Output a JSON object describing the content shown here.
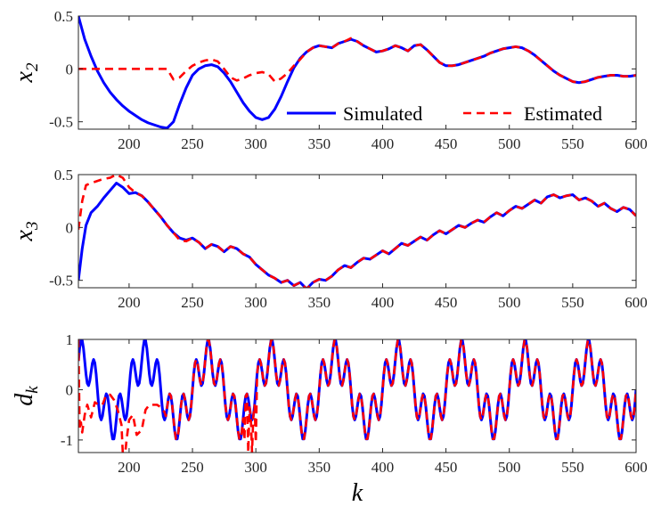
{
  "colors": {
    "simulated": "#0000ff",
    "estimated": "#ff0000",
    "axis": "#262626"
  },
  "legend": {
    "location": "bottom-right of top panel",
    "simulated_label": "Simulated",
    "estimated_label": "Estimated"
  },
  "shared_xlabel": {
    "base": "k",
    "sub": ""
  },
  "chart_data": [
    {
      "type": "line",
      "ylabel": {
        "base": "x",
        "sub": "2"
      },
      "xlim": [
        160,
        600
      ],
      "ylim": [
        -0.57,
        0.5
      ],
      "xticks": [
        200,
        250,
        300,
        350,
        400,
        450,
        500,
        550,
        600
      ],
      "yticks": [
        -0.5,
        0,
        0.5
      ],
      "ytick_labels": [
        "-0.5",
        "0",
        "0.5"
      ],
      "grid": false,
      "series": [
        {
          "name": "Simulated",
          "x": [
            160,
            165,
            170,
            175,
            180,
            185,
            190,
            195,
            200,
            205,
            210,
            215,
            220,
            225,
            230,
            235,
            240,
            245,
            250,
            255,
            260,
            265,
            270,
            275,
            280,
            285,
            290,
            295,
            300,
            305,
            310,
            315,
            320,
            325,
            330,
            335,
            340,
            345,
            350,
            355,
            360,
            365,
            370,
            375,
            380,
            385,
            390,
            395,
            400,
            405,
            410,
            415,
            420,
            425,
            430,
            435,
            440,
            445,
            450,
            455,
            460,
            465,
            470,
            475,
            480,
            485,
            490,
            495,
            500,
            505,
            510,
            515,
            520,
            525,
            530,
            535,
            540,
            545,
            550,
            555,
            560,
            565,
            570,
            575,
            580,
            585,
            590,
            595,
            600
          ],
          "values": [
            0.5,
            0.28,
            0.12,
            -0.02,
            -0.13,
            -0.22,
            -0.29,
            -0.35,
            -0.4,
            -0.44,
            -0.48,
            -0.51,
            -0.53,
            -0.55,
            -0.56,
            -0.5,
            -0.33,
            -0.18,
            -0.06,
            0.0,
            0.03,
            0.04,
            0.02,
            -0.04,
            -0.12,
            -0.22,
            -0.32,
            -0.4,
            -0.46,
            -0.48,
            -0.46,
            -0.38,
            -0.26,
            -0.12,
            0.01,
            0.1,
            0.16,
            0.2,
            0.22,
            0.21,
            0.2,
            0.24,
            0.26,
            0.28,
            0.26,
            0.22,
            0.19,
            0.16,
            0.17,
            0.19,
            0.22,
            0.2,
            0.17,
            0.22,
            0.23,
            0.18,
            0.12,
            0.06,
            0.03,
            0.03,
            0.04,
            0.06,
            0.08,
            0.1,
            0.12,
            0.15,
            0.17,
            0.19,
            0.2,
            0.21,
            0.2,
            0.17,
            0.13,
            0.08,
            0.03,
            -0.02,
            -0.06,
            -0.09,
            -0.12,
            -0.13,
            -0.12,
            -0.1,
            -0.08,
            -0.07,
            -0.06,
            -0.06,
            -0.07,
            -0.07,
            -0.06
          ]
        },
        {
          "name": "Estimated",
          "x": [
            160,
            170,
            180,
            190,
            200,
            210,
            220,
            225,
            230,
            235,
            240,
            245,
            250,
            255,
            260,
            265,
            270,
            275,
            280,
            285,
            290,
            295,
            300,
            305,
            310,
            315,
            320,
            325,
            330,
            335,
            340,
            345,
            350,
            355,
            360,
            365,
            370,
            375,
            380,
            385,
            390,
            395,
            400,
            405,
            410,
            415,
            420,
            425,
            430,
            435,
            440,
            445,
            450,
            455,
            460,
            465,
            470,
            475,
            480,
            485,
            490,
            495,
            500,
            505,
            510,
            515,
            520,
            525,
            530,
            535,
            540,
            545,
            550,
            555,
            560,
            565,
            570,
            575,
            580,
            585,
            590,
            595,
            600
          ],
          "values": [
            0,
            0,
            0,
            0,
            0,
            0,
            0,
            0,
            0,
            -0.1,
            -0.08,
            -0.02,
            0.03,
            0.06,
            0.08,
            0.09,
            0.07,
            0.0,
            -0.08,
            -0.11,
            -0.09,
            -0.06,
            -0.04,
            -0.03,
            -0.05,
            -0.12,
            -0.09,
            -0.04,
            0.03,
            0.09,
            0.16,
            0.2,
            0.22,
            0.21,
            0.2,
            0.24,
            0.26,
            0.29,
            0.26,
            0.22,
            0.19,
            0.16,
            0.17,
            0.19,
            0.22,
            0.2,
            0.17,
            0.22,
            0.23,
            0.18,
            0.12,
            0.06,
            0.03,
            0.03,
            0.04,
            0.06,
            0.08,
            0.1,
            0.12,
            0.15,
            0.17,
            0.19,
            0.2,
            0.21,
            0.2,
            0.17,
            0.13,
            0.08,
            0.03,
            -0.02,
            -0.06,
            -0.09,
            -0.12,
            -0.13,
            -0.12,
            -0.1,
            -0.08,
            -0.07,
            -0.06,
            -0.06,
            -0.07,
            -0.07,
            -0.06
          ]
        }
      ]
    },
    {
      "type": "line",
      "ylabel": {
        "base": "x",
        "sub": "3"
      },
      "xlim": [
        160,
        600
      ],
      "ylim": [
        -0.57,
        0.5
      ],
      "xticks": [
        200,
        250,
        300,
        350,
        400,
        450,
        500,
        550,
        600
      ],
      "yticks": [
        -0.5,
        0,
        0.5
      ],
      "ytick_labels": [
        "-0.5",
        "0",
        "0.5"
      ],
      "grid": false,
      "series": [
        {
          "name": "Simulated",
          "x": [
            160,
            163,
            166,
            170,
            175,
            180,
            185,
            190,
            195,
            200,
            205,
            210,
            215,
            220,
            225,
            230,
            235,
            240,
            245,
            250,
            255,
            260,
            265,
            270,
            275,
            280,
            285,
            290,
            295,
            300,
            305,
            310,
            315,
            320,
            325,
            330,
            335,
            340,
            345,
            350,
            355,
            360,
            365,
            370,
            375,
            380,
            385,
            390,
            395,
            400,
            405,
            410,
            415,
            420,
            425,
            430,
            435,
            440,
            445,
            450,
            455,
            460,
            465,
            470,
            475,
            480,
            485,
            490,
            495,
            500,
            505,
            510,
            515,
            520,
            525,
            530,
            535,
            540,
            545,
            550,
            555,
            560,
            565,
            570,
            575,
            580,
            585,
            590,
            595,
            600
          ],
          "values": [
            -0.5,
            -0.2,
            0.02,
            0.14,
            0.2,
            0.28,
            0.35,
            0.42,
            0.38,
            0.32,
            0.33,
            0.3,
            0.24,
            0.17,
            0.1,
            0.02,
            -0.05,
            -0.1,
            -0.12,
            -0.1,
            -0.14,
            -0.2,
            -0.16,
            -0.18,
            -0.23,
            -0.18,
            -0.2,
            -0.25,
            -0.28,
            -0.35,
            -0.4,
            -0.45,
            -0.48,
            -0.52,
            -0.5,
            -0.55,
            -0.52,
            -0.58,
            -0.52,
            -0.49,
            -0.5,
            -0.46,
            -0.4,
            -0.36,
            -0.38,
            -0.33,
            -0.29,
            -0.3,
            -0.26,
            -0.22,
            -0.25,
            -0.2,
            -0.15,
            -0.17,
            -0.13,
            -0.09,
            -0.12,
            -0.07,
            -0.03,
            -0.06,
            -0.02,
            0.02,
            0.0,
            0.04,
            0.07,
            0.05,
            0.1,
            0.14,
            0.11,
            0.16,
            0.2,
            0.18,
            0.22,
            0.26,
            0.23,
            0.29,
            0.31,
            0.28,
            0.3,
            0.31,
            0.26,
            0.28,
            0.25,
            0.2,
            0.23,
            0.18,
            0.15,
            0.19,
            0.17,
            0.11
          ]
        },
        {
          "name": "Estimated",
          "x": [
            160,
            163,
            166,
            170,
            175,
            180,
            185,
            190,
            195,
            200,
            205,
            210,
            215,
            220,
            225,
            230,
            235,
            240,
            245,
            250,
            255,
            260,
            265,
            270,
            275,
            280,
            285,
            290,
            295,
            300,
            305,
            310,
            315,
            320,
            325,
            330,
            335,
            340,
            345,
            350,
            355,
            360,
            365,
            370,
            375,
            380,
            385,
            390,
            395,
            400,
            405,
            410,
            415,
            420,
            425,
            430,
            435,
            440,
            445,
            450,
            455,
            460,
            465,
            470,
            475,
            480,
            485,
            490,
            495,
            500,
            505,
            510,
            515,
            520,
            525,
            530,
            535,
            540,
            545,
            550,
            555,
            560,
            565,
            570,
            575,
            580,
            585,
            590,
            595,
            600
          ],
          "values": [
            -0.02,
            0.25,
            0.4,
            0.42,
            0.44,
            0.46,
            0.47,
            0.5,
            0.47,
            0.38,
            0.33,
            0.3,
            0.24,
            0.17,
            0.1,
            0.02,
            -0.05,
            -0.12,
            -0.13,
            -0.1,
            -0.14,
            -0.2,
            -0.16,
            -0.18,
            -0.23,
            -0.18,
            -0.2,
            -0.25,
            -0.28,
            -0.35,
            -0.4,
            -0.45,
            -0.48,
            -0.52,
            -0.5,
            -0.55,
            -0.52,
            -0.58,
            -0.52,
            -0.49,
            -0.5,
            -0.46,
            -0.4,
            -0.36,
            -0.38,
            -0.33,
            -0.29,
            -0.3,
            -0.26,
            -0.22,
            -0.25,
            -0.2,
            -0.15,
            -0.17,
            -0.13,
            -0.09,
            -0.12,
            -0.07,
            -0.03,
            -0.06,
            -0.02,
            0.02,
            0.0,
            0.04,
            0.07,
            0.05,
            0.1,
            0.14,
            0.11,
            0.16,
            0.2,
            0.18,
            0.22,
            0.26,
            0.23,
            0.29,
            0.31,
            0.28,
            0.3,
            0.31,
            0.26,
            0.28,
            0.25,
            0.2,
            0.23,
            0.18,
            0.15,
            0.19,
            0.17,
            0.11
          ]
        }
      ]
    },
    {
      "type": "line",
      "ylabel": {
        "base": "d",
        "sub": "k"
      },
      "xlim": [
        160,
        600
      ],
      "ylim": [
        -1.25,
        1.0
      ],
      "xticks": [
        200,
        250,
        300,
        350,
        400,
        450,
        500,
        550,
        600
      ],
      "yticks": [
        -1,
        0,
        1
      ],
      "ytick_labels": [
        "-1",
        "0",
        "1"
      ],
      "grid": false,
      "signal": {
        "description_of_form": "d(k) = 0.6 sin(2*pi*k/50) + 0.4 sin(2*pi*k/10)",
        "amp1": 0.6,
        "period1": 50,
        "amp2": 0.4,
        "period2": 10,
        "k_step": 1
      },
      "series": [
        {
          "name": "Simulated",
          "x_range": [
            160,
            600
          ]
        },
        {
          "name": "Estimated",
          "x_range": [
            160,
            600
          ],
          "transient_until": 228,
          "transient_points": {
            "x": [
              160,
              161,
              162,
              163,
              165,
              167,
              170,
              173,
              176,
              179,
              182,
              185,
              188,
              191,
              194,
              195,
              196,
              197,
              198,
              199,
              200,
              203,
              206,
              210,
              213,
              216,
              219,
              222,
              225,
              228
            ],
            "values": [
              1.0,
              -0.8,
              -0.65,
              -0.85,
              -0.5,
              -0.3,
              -0.55,
              -0.25,
              -0.3,
              -0.3,
              -0.1,
              -0.1,
              -0.2,
              -0.4,
              -0.7,
              -1.25,
              -1.25,
              -1.25,
              -1.0,
              -0.8,
              -0.6,
              -0.5,
              -0.9,
              -0.8,
              -0.4,
              -0.3,
              -0.3,
              -0.3,
              -0.35,
              -0.45
            ]
          },
          "dip_near": {
            "x": [
              291,
              294,
              297,
              300
            ],
            "values": [
              -1.0,
              -1.25,
              -1.25,
              -1.05
            ]
          }
        }
      ]
    }
  ]
}
